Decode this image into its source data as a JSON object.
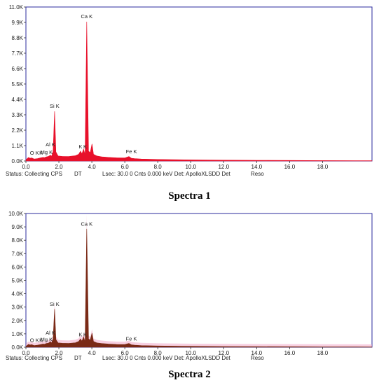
{
  "figure": {
    "captions": [
      "Spectra 1",
      "Spectra 2"
    ]
  },
  "status_bar": {
    "status": "Status: Collecting CPS",
    "dt": "DT",
    "lsec_1": "Lsec: 30.0 0 Cnts  0.000 keV Det: ApolloXLSDD Det",
    "lsec_2": "Lsec: 30.0 0 Cnts  0.000 keV Det: ApolloXLSDD Det",
    "reso": "Reso"
  },
  "chart_data": [
    {
      "type": "line",
      "title": "Spectra 1",
      "xlabel": "",
      "ylabel": "",
      "xlim": [
        0,
        21
      ],
      "ylim": [
        0,
        11000
      ],
      "x_ticks": [
        "0.0",
        "2.0",
        "4.0",
        "6.0",
        "8.0",
        "10.0",
        "12.0",
        "14.0",
        "16.0",
        "18.0"
      ],
      "y_ticks": [
        "0.0K",
        "1.1K",
        "2.2K",
        "3.3K",
        "4.4K",
        "5.5K",
        "6.6K",
        "7.7K",
        "8.8K",
        "9.9K",
        "11.0K"
      ],
      "fill_color": "#e8102a",
      "frame_color": "#2b2b9e",
      "grid": false,
      "x": [
        0.0,
        0.15,
        0.26,
        0.35,
        0.5,
        0.7,
        0.9,
        1.04,
        1.12,
        1.25,
        1.35,
        1.49,
        1.56,
        1.65,
        1.74,
        1.82,
        1.95,
        2.2,
        2.6,
        3.0,
        3.2,
        3.31,
        3.4,
        3.5,
        3.59,
        3.69,
        3.8,
        3.9,
        4.01,
        4.1,
        4.3,
        4.6,
        5.0,
        5.5,
        6.0,
        6.25,
        6.4,
        6.6,
        7.0,
        8.0,
        10.0,
        12.0,
        14.0,
        16.0,
        18.0,
        20.0,
        21.0
      ],
      "y": [
        80,
        250,
        200,
        220,
        140,
        170,
        230,
        260,
        240,
        300,
        320,
        420,
        340,
        700,
        3550,
        650,
        360,
        330,
        320,
        380,
        480,
        700,
        520,
        850,
        450,
        9950,
        700,
        600,
        1220,
        480,
        360,
        300,
        260,
        230,
        220,
        320,
        200,
        170,
        140,
        110,
        80,
        60,
        50,
        40,
        30,
        25,
        20
      ],
      "annotations": [
        {
          "label": "O K",
          "x": 0.52,
          "y": 450
        },
        {
          "label": "K",
          "x": 0.92,
          "y": 450
        },
        {
          "label": "Mg K",
          "x": 1.25,
          "y": 500
        },
        {
          "label": "Al K",
          "x": 1.49,
          "y": 1050
        },
        {
          "label": "Si K",
          "x": 1.74,
          "y": 3800
        },
        {
          "label": "K",
          "x": 3.31,
          "y": 900
        },
        {
          "label": "K",
          "x": 3.59,
          "y": 900
        },
        {
          "label": "Ca K",
          "x": 3.69,
          "y": 10200
        },
        {
          "label": "Fe K",
          "x": 6.4,
          "y": 560
        }
      ]
    },
    {
      "type": "line",
      "title": "Spectra 2",
      "xlabel": "",
      "ylabel": "",
      "xlim": [
        0,
        21
      ],
      "ylim": [
        0,
        10500
      ],
      "x_ticks": [
        "0.0",
        "2.0",
        "4.0",
        "6.0",
        "8.0",
        "10.0",
        "12.0",
        "14.0",
        "16.0",
        "18.0"
      ],
      "y_ticks": [
        "0.0K",
        "1.0K",
        "2.0K",
        "3.0K",
        "4.0K",
        "5.0K",
        "6.0K",
        "7.0K",
        "8.0K",
        "9.0K",
        "10.0K"
      ],
      "fill_color": "#7a2a16",
      "overlay_color": "#f0a8c8",
      "frame_color": "#2b2b9e",
      "grid": false,
      "x": [
        0.0,
        0.15,
        0.26,
        0.35,
        0.5,
        0.7,
        0.9,
        1.04,
        1.12,
        1.25,
        1.35,
        1.49,
        1.56,
        1.65,
        1.74,
        1.82,
        1.95,
        2.2,
        2.6,
        3.0,
        3.2,
        3.31,
        3.4,
        3.5,
        3.59,
        3.69,
        3.8,
        3.9,
        4.01,
        4.1,
        4.3,
        4.6,
        5.0,
        5.5,
        6.0,
        6.25,
        6.4,
        6.6,
        7.0,
        8.0,
        10.0,
        12.0,
        14.0,
        16.0,
        18.0,
        20.0,
        21.0
      ],
      "y": [
        60,
        220,
        180,
        200,
        130,
        160,
        210,
        250,
        230,
        300,
        310,
        430,
        330,
        650,
        3000,
        600,
        340,
        310,
        300,
        350,
        450,
        650,
        480,
        800,
        420,
        9300,
        650,
        560,
        1100,
        450,
        340,
        290,
        250,
        220,
        210,
        300,
        190,
        160,
        130,
        100,
        70,
        55,
        45,
        35,
        28,
        22,
        18
      ],
      "annotations": [
        {
          "label": "O K",
          "x": 0.52,
          "y": 420
        },
        {
          "label": "K",
          "x": 0.92,
          "y": 420
        },
        {
          "label": "Mg K",
          "x": 1.25,
          "y": 480
        },
        {
          "label": "Al K",
          "x": 1.49,
          "y": 1000
        },
        {
          "label": "Si K",
          "x": 1.74,
          "y": 3250
        },
        {
          "label": "K",
          "x": 3.31,
          "y": 850
        },
        {
          "label": "K",
          "x": 3.59,
          "y": 850
        },
        {
          "label": "Ca K",
          "x": 3.69,
          "y": 9550
        },
        {
          "label": "Fe K",
          "x": 6.4,
          "y": 520
        }
      ]
    }
  ]
}
